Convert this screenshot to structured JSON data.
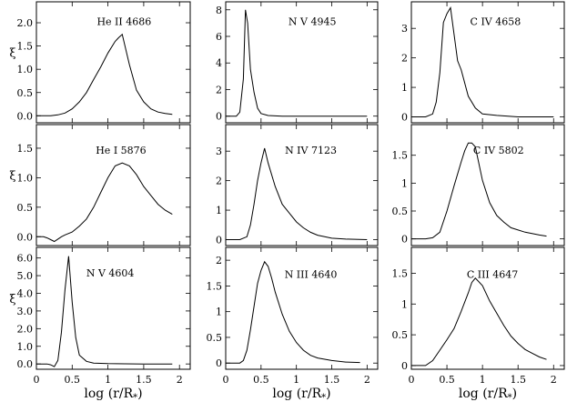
{
  "chart_data": {
    "type": "line",
    "layout": "3x3 grid",
    "xlabel": "log (r/R",
    "xlabel_sub": "*",
    "xlabel_close": ")",
    "ylabel": "ξ",
    "xlim": [
      0,
      2.15
    ],
    "xticks": [
      0,
      0.5,
      1,
      1.5,
      2
    ],
    "xtick_labels": [
      "0",
      "0.5",
      "1",
      "1.5",
      "2"
    ],
    "panels": [
      {
        "label": "He II 4686",
        "ylim": [
          -0.15,
          2.45
        ],
        "yticks": [
          0,
          0.5,
          1.0,
          1.5,
          2.0
        ],
        "ytick_labels": [
          "0.0",
          "0.5",
          "1.0",
          "1.5",
          "2.0"
        ],
        "x": [
          0,
          0.2,
          0.3,
          0.4,
          0.5,
          0.6,
          0.7,
          0.8,
          0.9,
          1.0,
          1.1,
          1.15,
          1.2,
          1.3,
          1.4,
          1.5,
          1.6,
          1.7,
          1.8,
          1.9
        ],
        "y": [
          0,
          0,
          0.02,
          0.06,
          0.15,
          0.3,
          0.5,
          0.78,
          1.05,
          1.35,
          1.6,
          1.68,
          1.75,
          1.1,
          0.55,
          0.3,
          0.15,
          0.08,
          0.05,
          0.03
        ]
      },
      {
        "label": "N V 4945",
        "ylim": [
          -0.5,
          8.6
        ],
        "yticks": [
          0,
          2,
          4,
          6,
          8
        ],
        "ytick_labels": [
          "0",
          "2",
          "4",
          "6",
          "8"
        ],
        "x": [
          0,
          0.15,
          0.2,
          0.25,
          0.28,
          0.31,
          0.35,
          0.4,
          0.45,
          0.5,
          0.6,
          0.8,
          1.0,
          1.5,
          2.0
        ],
        "y": [
          0,
          0,
          0.3,
          2.8,
          8.0,
          7.0,
          3.5,
          1.8,
          0.6,
          0.2,
          0.05,
          0,
          0,
          0,
          0
        ]
      },
      {
        "label": "C IV 4658",
        "ylim": [
          -0.2,
          3.9
        ],
        "yticks": [
          0,
          1,
          2,
          3
        ],
        "ytick_labels": [
          "0",
          "1",
          "2",
          "3"
        ],
        "x": [
          0,
          0.2,
          0.3,
          0.35,
          0.4,
          0.45,
          0.5,
          0.55,
          0.6,
          0.65,
          0.7,
          0.8,
          0.9,
          1.0,
          1.2,
          1.5,
          2.0
        ],
        "y": [
          0,
          0,
          0.1,
          0.5,
          1.5,
          3.2,
          3.5,
          3.7,
          2.8,
          1.9,
          1.6,
          0.7,
          0.3,
          0.1,
          0.05,
          0,
          0
        ]
      },
      {
        "label": "He I 5876",
        "ylim": [
          -0.15,
          1.9
        ],
        "yticks": [
          0,
          0.5,
          1.0,
          1.5
        ],
        "ytick_labels": [
          "0.0",
          "0.5",
          "1.0",
          "1.5"
        ],
        "x": [
          0,
          0.1,
          0.15,
          0.2,
          0.25,
          0.3,
          0.35,
          0.4,
          0.5,
          0.6,
          0.7,
          0.8,
          0.9,
          1.0,
          1.1,
          1.2,
          1.3,
          1.4,
          1.5,
          1.6,
          1.7,
          1.8,
          1.9
        ],
        "y": [
          0,
          0,
          -0.02,
          -0.05,
          -0.08,
          -0.04,
          0.0,
          0.03,
          0.08,
          0.18,
          0.3,
          0.5,
          0.75,
          1.0,
          1.2,
          1.25,
          1.2,
          1.05,
          0.85,
          0.7,
          0.55,
          0.45,
          0.38
        ]
      },
      {
        "label": "N IV 7123",
        "ylim": [
          -0.2,
          3.9
        ],
        "yticks": [
          0,
          1,
          2,
          3
        ],
        "ytick_labels": [
          "0",
          "1",
          "2",
          "3"
        ],
        "x": [
          0,
          0.2,
          0.3,
          0.35,
          0.4,
          0.45,
          0.5,
          0.55,
          0.6,
          0.7,
          0.8,
          0.9,
          1.0,
          1.1,
          1.2,
          1.3,
          1.5,
          1.7,
          2.0
        ],
        "y": [
          0,
          0,
          0.1,
          0.5,
          1.2,
          2.0,
          2.6,
          3.1,
          2.6,
          1.8,
          1.2,
          0.9,
          0.6,
          0.4,
          0.25,
          0.15,
          0.05,
          0.02,
          0
        ]
      },
      {
        "label": "C IV 5802",
        "ylim": [
          -0.12,
          2.05
        ],
        "yticks": [
          0,
          0.5,
          1.0,
          1.5
        ],
        "ytick_labels": [
          "0",
          "0.5",
          "1",
          "1.5"
        ],
        "x": [
          0,
          0.2,
          0.3,
          0.4,
          0.5,
          0.6,
          0.7,
          0.75,
          0.8,
          0.85,
          0.9,
          1.0,
          1.1,
          1.2,
          1.3,
          1.4,
          1.6,
          1.8,
          1.9
        ],
        "y": [
          0,
          0,
          0.02,
          0.12,
          0.5,
          0.95,
          1.38,
          1.58,
          1.72,
          1.72,
          1.65,
          1.05,
          0.65,
          0.42,
          0.3,
          0.2,
          0.12,
          0.07,
          0.05
        ]
      },
      {
        "label": "N V 4604",
        "ylim": [
          -0.3,
          6.6
        ],
        "yticks": [
          0,
          1,
          2,
          3,
          4,
          5,
          6
        ],
        "ytick_labels": [
          "0.0",
          "1.0",
          "2.0",
          "3.0",
          "4.0",
          "5.0",
          "6.0"
        ],
        "x": [
          0,
          0.15,
          0.2,
          0.25,
          0.3,
          0.35,
          0.4,
          0.45,
          0.5,
          0.55,
          0.6,
          0.7,
          0.8,
          1.0,
          1.5,
          1.9
        ],
        "y": [
          0,
          0,
          -0.05,
          -0.15,
          0.2,
          1.8,
          4.2,
          6.1,
          3.5,
          1.5,
          0.5,
          0.15,
          0.05,
          0.02,
          0,
          0
        ]
      },
      {
        "label": "N III 4640",
        "ylim": [
          -0.12,
          2.25
        ],
        "yticks": [
          0,
          0.5,
          1.0,
          1.5,
          2.0
        ],
        "ytick_labels": [
          "0",
          "0.5",
          "1",
          "1.5",
          "2"
        ],
        "x": [
          0,
          0.2,
          0.25,
          0.3,
          0.35,
          0.4,
          0.45,
          0.5,
          0.55,
          0.6,
          0.65,
          0.7,
          0.8,
          0.9,
          1.0,
          1.1,
          1.2,
          1.3,
          1.5,
          1.7,
          1.9
        ],
        "y": [
          0,
          0,
          0.05,
          0.25,
          0.65,
          1.1,
          1.55,
          1.8,
          1.97,
          1.88,
          1.65,
          1.38,
          0.95,
          0.62,
          0.4,
          0.25,
          0.15,
          0.1,
          0.05,
          0.02,
          0.01
        ]
      },
      {
        "label": "C III 4647",
        "ylim": [
          -0.06,
          1.92
        ],
        "yticks": [
          0,
          0.5,
          1.0,
          1.5
        ],
        "ytick_labels": [
          "0",
          "0.5",
          "1",
          "1.5"
        ],
        "x": [
          0,
          0.2,
          0.3,
          0.4,
          0.5,
          0.6,
          0.7,
          0.8,
          0.85,
          0.9,
          1.0,
          1.1,
          1.2,
          1.3,
          1.4,
          1.5,
          1.6,
          1.7,
          1.8,
          1.9
        ],
        "y": [
          0,
          0,
          0.08,
          0.25,
          0.42,
          0.6,
          0.88,
          1.18,
          1.35,
          1.42,
          1.3,
          1.05,
          0.85,
          0.65,
          0.48,
          0.36,
          0.26,
          0.2,
          0.14,
          0.1
        ]
      }
    ]
  }
}
